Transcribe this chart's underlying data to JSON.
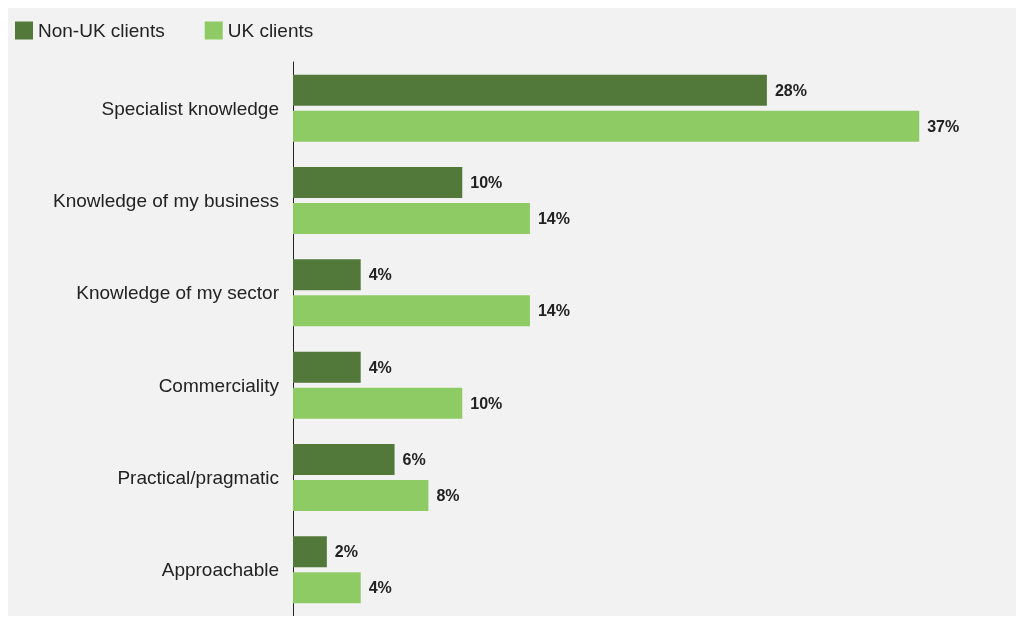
{
  "chart_data": {
    "type": "bar",
    "orientation": "horizontal",
    "legend": "top left",
    "grid": false,
    "categories": [
      "Specialist knowledge",
      "Knowledge of my business",
      "Knowledge of my sector",
      "Commerciality",
      "Practical/pragmatic",
      "Approachable"
    ],
    "series": [
      {
        "name": "Non-UK clients",
        "color": "#53793a",
        "values": [
          28,
          10,
          4,
          4,
          6,
          2
        ],
        "value_labels": [
          "28%",
          "10%",
          "4%",
          "4%",
          "6%",
          "2%"
        ]
      },
      {
        "name": "UK clients",
        "color": "#8fcb64",
        "values": [
          37,
          14,
          14,
          10,
          8,
          4
        ],
        "value_labels": [
          "37%",
          "14%",
          "14%",
          "10%",
          "8%",
          "4%"
        ]
      }
    ]
  }
}
